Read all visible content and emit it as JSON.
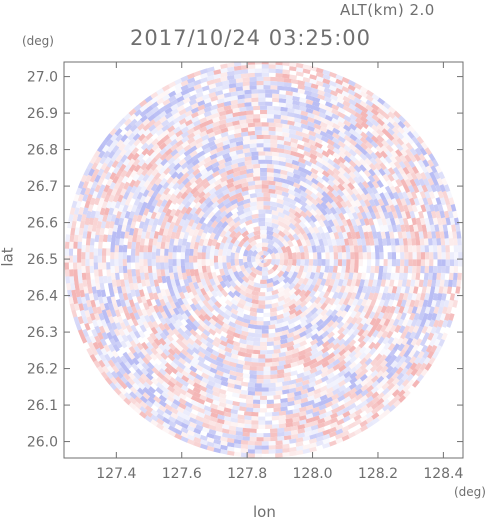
{
  "header": {
    "altitude_label": "ALT(km)  2.0",
    "datetime": "2017/10/24 03:25:00"
  },
  "chart_data": {
    "type": "heatmap",
    "title": "2017/10/24 03:25:00",
    "subtitle": "ALT(km)  2.0",
    "xlabel": "lon",
    "ylabel": "lat",
    "x_unit": "(deg)",
    "y_unit": "(deg)",
    "xlim": [
      127.24,
      128.46
    ],
    "ylim": [
      25.955,
      27.04
    ],
    "x_ticks": [
      "127.4",
      "127.6",
      "127.8",
      "128.0",
      "128.2",
      "128.4"
    ],
    "y_ticks": [
      "26.0",
      "26.1",
      "26.2",
      "26.3",
      "26.4",
      "26.5",
      "26.6",
      "26.7",
      "26.8",
      "26.9",
      "27.0"
    ],
    "center": {
      "lon": 127.85,
      "lat": 26.5
    },
    "radius_deg_lat": 0.545,
    "colors": {
      "positive": "#f4b6b6",
      "negative": "#b9bdf4",
      "zero": "#ffffff",
      "axis": "#6f6f6f"
    },
    "grid": false
  }
}
